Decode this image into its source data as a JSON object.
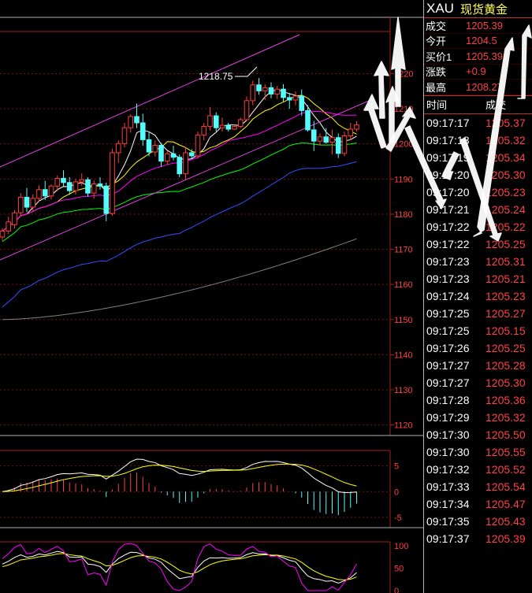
{
  "quote": {
    "symbol": "XAU",
    "name": "现货黄金",
    "rows": [
      {
        "label": "成交",
        "value": "1205.39"
      },
      {
        "label": "今开",
        "value": "1204.5"
      },
      {
        "label": "买价1",
        "value": "1205.39"
      },
      {
        "label": "涨跌",
        "value": "+0.9"
      },
      {
        "label": "最高",
        "value": "1208.27"
      }
    ],
    "tick_header": {
      "time": "时间",
      "price": "成交"
    },
    "ticks": [
      {
        "time": "09:17:17",
        "price": "1205.37"
      },
      {
        "time": "09:17:18",
        "price": "1205.32"
      },
      {
        "time": "09:17:19",
        "price": "1205.34"
      },
      {
        "time": "09:17:20",
        "price": "1205.30"
      },
      {
        "time": "09:17:20",
        "price": "1205.23"
      },
      {
        "time": "09:17:21",
        "price": "1205.24"
      },
      {
        "time": "09:17:22",
        "price": "1205.22"
      },
      {
        "time": "09:17:22",
        "price": "1205.25"
      },
      {
        "time": "09:17:23",
        "price": "1205.31"
      },
      {
        "time": "09:17:23",
        "price": "1205.21"
      },
      {
        "time": "09:17:24",
        "price": "1205.23"
      },
      {
        "time": "09:17:25",
        "price": "1205.27"
      },
      {
        "time": "09:17:25",
        "price": "1205.15"
      },
      {
        "time": "09:17:26",
        "price": "1205.25"
      },
      {
        "time": "09:17:27",
        "price": "1205.28"
      },
      {
        "time": "09:17:27",
        "price": "1205.30"
      },
      {
        "time": "09:17:28",
        "price": "1205.36"
      },
      {
        "time": "09:17:29",
        "price": "1205.32"
      },
      {
        "time": "09:17:30",
        "price": "1205.50"
      },
      {
        "time": "09:17:30",
        "price": "1205.55"
      },
      {
        "time": "09:17:32",
        "price": "1205.52"
      },
      {
        "time": "09:17:33",
        "price": "1205.54"
      },
      {
        "time": "09:17:34",
        "price": "1205.47"
      },
      {
        "time": "09:17:35",
        "price": "1205.43"
      },
      {
        "time": "09:17:37",
        "price": "1205.39"
      }
    ]
  },
  "chart_data": [
    {
      "type": "candlestick",
      "panel": "price",
      "ylim": [
        1117,
        1232
      ],
      "yticks": [
        "1220",
        "1210",
        "1200",
        "1190",
        "1180",
        "1170",
        "1160",
        "1150",
        "1140",
        "1130",
        "1120"
      ],
      "annotation": "1218.75",
      "colors": {
        "up": "#ff3c3c",
        "down": "#54fcfc",
        "ma5": "#ffffff",
        "ma10": "#ffff00",
        "ma20": "#ff00ff",
        "ma30": "#00ff00",
        "ma60": "#3050ff",
        "ma120": "#808080"
      },
      "candles": [
        [
          1173.5,
          1176.0,
          1172.5,
          1175.2
        ],
        [
          1175.2,
          1179.3,
          1174.3,
          1177.8
        ],
        [
          1177.0,
          1181.2,
          1176.0,
          1180.4
        ],
        [
          1180.4,
          1186.0,
          1179.5,
          1184.8
        ],
        [
          1184.8,
          1187.5,
          1180.6,
          1182.0
        ],
        [
          1182.0,
          1185.6,
          1181.0,
          1184.5
        ],
        [
          1184.5,
          1188.2,
          1183.5,
          1187.0
        ],
        [
          1187.0,
          1189.5,
          1184.0,
          1185.2
        ],
        [
          1185.2,
          1188.5,
          1184.2,
          1188.0
        ],
        [
          1188.0,
          1191.0,
          1186.5,
          1190.2
        ],
        [
          1190.2,
          1192.5,
          1188.0,
          1189.0
        ],
        [
          1189.0,
          1190.5,
          1185.5,
          1186.7
        ],
        [
          1186.7,
          1190.0,
          1185.6,
          1189.2
        ],
        [
          1189.2,
          1191.6,
          1188.0,
          1189.8
        ],
        [
          1189.8,
          1190.5,
          1185.0,
          1186.0
        ],
        [
          1186.0,
          1189.6,
          1184.4,
          1188.6
        ],
        [
          1188.6,
          1190.5,
          1187.0,
          1188.0
        ],
        [
          1188.0,
          1189.0,
          1178.0,
          1180.2
        ],
        [
          1180.2,
          1198.6,
          1179.6,
          1197.5
        ],
        [
          1197.5,
          1201.0,
          1194.6,
          1200.1
        ],
        [
          1200.1,
          1206.0,
          1199.0,
          1204.6
        ],
        [
          1204.6,
          1208.5,
          1203.2,
          1207.8
        ],
        [
          1207.8,
          1211.5,
          1204.5,
          1206.0
        ],
        [
          1206.0,
          1208.6,
          1199.5,
          1201.2
        ],
        [
          1201.2,
          1203.5,
          1196.5,
          1197.7
        ],
        [
          1197.7,
          1201.0,
          1196.5,
          1199.6
        ],
        [
          1199.6,
          1200.3,
          1193.5,
          1195.1
        ],
        [
          1195.1,
          1198.0,
          1194.0,
          1197.2
        ],
        [
          1197.2,
          1199.5,
          1195.3,
          1196.2
        ],
        [
          1196.2,
          1197.0,
          1190.5,
          1191.5
        ],
        [
          1191.5,
          1199.0,
          1190.0,
          1197.5
        ],
        [
          1197.5,
          1198.5,
          1195.7,
          1196.6
        ],
        [
          1196.6,
          1203.5,
          1195.8,
          1202.5
        ],
        [
          1202.5,
          1206.0,
          1201.0,
          1205.0
        ],
        [
          1205.0,
          1210.5,
          1203.8,
          1208.0
        ],
        [
          1208.0,
          1209.0,
          1203.5,
          1204.6
        ],
        [
          1204.6,
          1207.5,
          1203.5,
          1205.3
        ],
        [
          1205.3,
          1206.0,
          1203.5,
          1204.2
        ],
        [
          1204.2,
          1205.6,
          1204.0,
          1205.0
        ],
        [
          1205.0,
          1207.5,
          1204.5,
          1206.9
        ],
        [
          1206.9,
          1213.5,
          1206.5,
          1212.3
        ],
        [
          1212.3,
          1218.0,
          1211.0,
          1216.8
        ],
        [
          1216.8,
          1218.75,
          1214.0,
          1215.1
        ],
        [
          1215.1,
          1217.0,
          1212.5,
          1216.0
        ],
        [
          1216.0,
          1217.5,
          1213.0,
          1214.2
        ],
        [
          1214.2,
          1216.5,
          1212.8,
          1215.6
        ],
        [
          1215.6,
          1217.0,
          1212.0,
          1213.2
        ],
        [
          1213.2,
          1214.5,
          1210.0,
          1212.5
        ],
        [
          1212.5,
          1215.0,
          1211.0,
          1213.6
        ],
        [
          1213.6,
          1215.5,
          1208.0,
          1209.5
        ],
        [
          1209.5,
          1211.0,
          1203.5,
          1204.0
        ],
        [
          1204.0,
          1206.5,
          1198.0,
          1200.8
        ],
        [
          1200.8,
          1203.0,
          1199.5,
          1202.0
        ],
        [
          1202.0,
          1204.5,
          1200.0,
          1200.5
        ],
        [
          1200.5,
          1204.0,
          1197.0,
          1201.8
        ],
        [
          1201.8,
          1203.0,
          1196.0,
          1197.3
        ],
        [
          1197.3,
          1203.5,
          1196.5,
          1202.3
        ],
        [
          1202.3,
          1206.0,
          1201.0,
          1204.2
        ],
        [
          1204.2,
          1206.5,
          1203.5,
          1205.4
        ]
      ]
    },
    {
      "type": "macd",
      "panel": "macd",
      "ylim": [
        -7,
        8
      ],
      "yticks": [
        "5",
        "0",
        "-5"
      ]
    },
    {
      "type": "kdj",
      "panel": "kdj",
      "ylim": [
        0,
        105
      ],
      "yticks": [
        "100",
        "50",
        "0"
      ]
    }
  ]
}
